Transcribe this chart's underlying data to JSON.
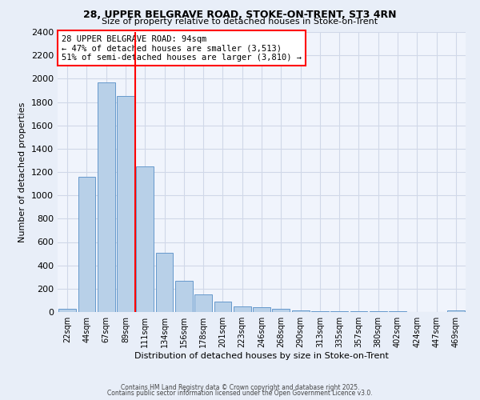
{
  "title1": "28, UPPER BELGRAVE ROAD, STOKE-ON-TRENT, ST3 4RN",
  "title2": "Size of property relative to detached houses in Stoke-on-Trent",
  "xlabel": "Distribution of detached houses by size in Stoke-on-Trent",
  "ylabel": "Number of detached properties",
  "categories": [
    "22sqm",
    "44sqm",
    "67sqm",
    "89sqm",
    "111sqm",
    "134sqm",
    "156sqm",
    "178sqm",
    "201sqm",
    "223sqm",
    "246sqm",
    "268sqm",
    "290sqm",
    "313sqm",
    "335sqm",
    "357sqm",
    "380sqm",
    "402sqm",
    "424sqm",
    "447sqm",
    "469sqm"
  ],
  "values": [
    25,
    1160,
    1970,
    1850,
    1250,
    510,
    270,
    150,
    90,
    50,
    40,
    25,
    15,
    10,
    5,
    5,
    5,
    5,
    2,
    2,
    15
  ],
  "bar_color": "#b8d0e8",
  "bar_edge_color": "#6699cc",
  "ylim": [
    0,
    2400
  ],
  "yticks": [
    0,
    200,
    400,
    600,
    800,
    1000,
    1200,
    1400,
    1600,
    1800,
    2000,
    2200,
    2400
  ],
  "vline_color": "red",
  "annotation_text": "28 UPPER BELGRAVE ROAD: 94sqm\n← 47% of detached houses are smaller (3,513)\n51% of semi-detached houses are larger (3,810) →",
  "annotation_box_color": "white",
  "annotation_box_edge": "red",
  "footer1": "Contains HM Land Registry data © Crown copyright and database right 2025.",
  "footer2": "Contains public sector information licensed under the Open Government Licence v3.0.",
  "bg_color": "#e8eef8",
  "plot_bg_color": "#f0f4fc",
  "grid_color": "#d0d8e8"
}
